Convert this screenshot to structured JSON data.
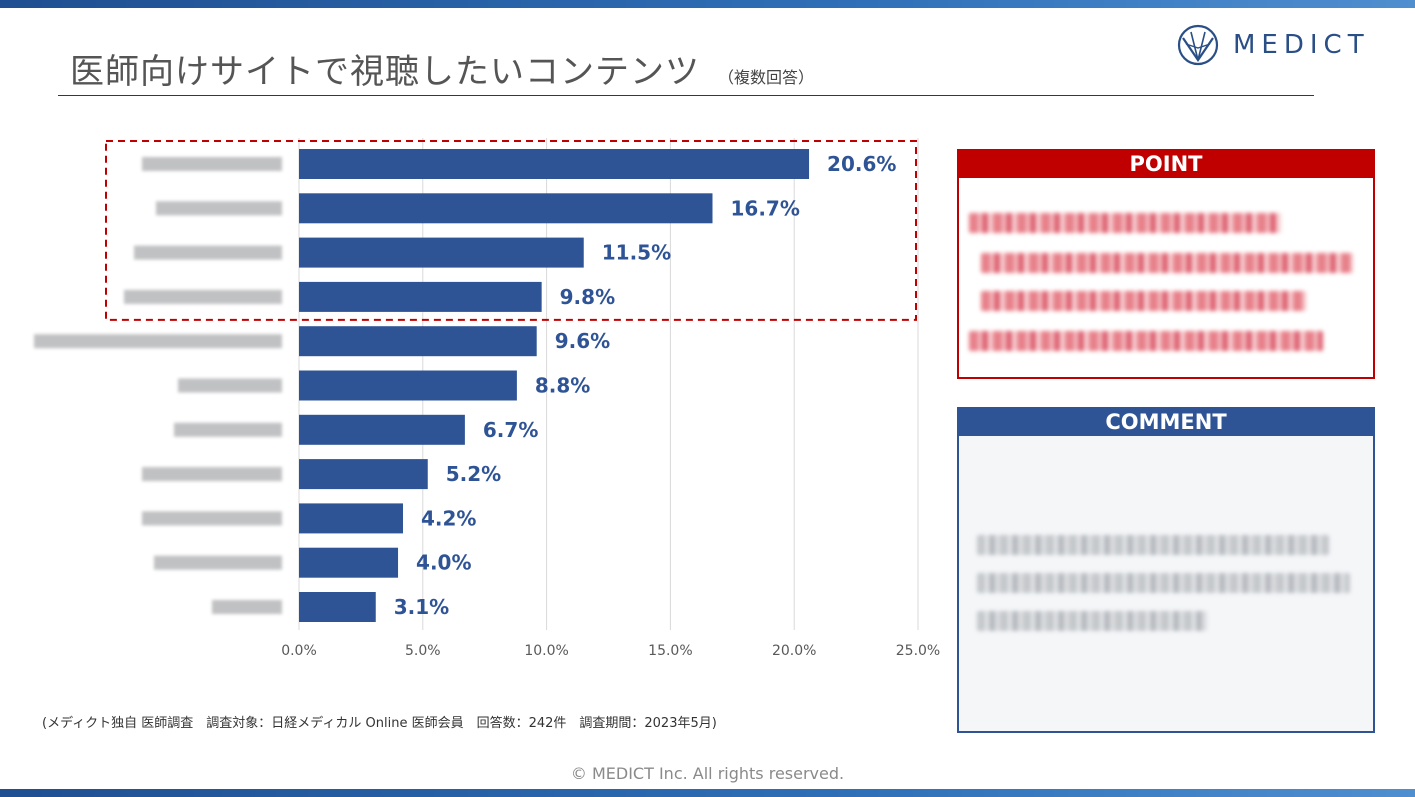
{
  "header": {
    "title": "医師向けサイトで視聴したいコンテンツ",
    "subtitle": "（複数回答）"
  },
  "logo": {
    "text": "MEDICT",
    "icon": "medict-logo-icon",
    "color": "#2a4f86"
  },
  "chart_data": {
    "type": "bar",
    "orientation": "horizontal",
    "values": [
      20.6,
      16.7,
      11.5,
      9.8,
      9.6,
      8.8,
      6.7,
      5.2,
      4.2,
      4.0,
      3.1
    ],
    "value_labels": [
      "20.6%",
      "16.7%",
      "11.5%",
      "9.8%",
      "9.6%",
      "8.8%",
      "6.7%",
      "5.2%",
      "4.2%",
      "4.0%",
      "3.1%"
    ],
    "x_ticks": [
      "0.0%",
      "5.0%",
      "10.0%",
      "15.0%",
      "20.0%",
      "25.0%"
    ],
    "xlim": [
      0,
      25
    ],
    "grid": "vertical",
    "highlighted_top_n": 4,
    "bar_color": "#2f5496",
    "highlight_color": "#c00000"
  },
  "note": "(メディクト独自 医師調査　調査対象：日経メディカル Online 医師会員　回答数：242件　調査期間：2023年5月)",
  "copyright": "© MEDICT Inc.  All rights reserved.",
  "point": {
    "header": "POINT",
    "color": "#c00000"
  },
  "comment": {
    "header": "COMMENT",
    "color": "#2f5496"
  }
}
